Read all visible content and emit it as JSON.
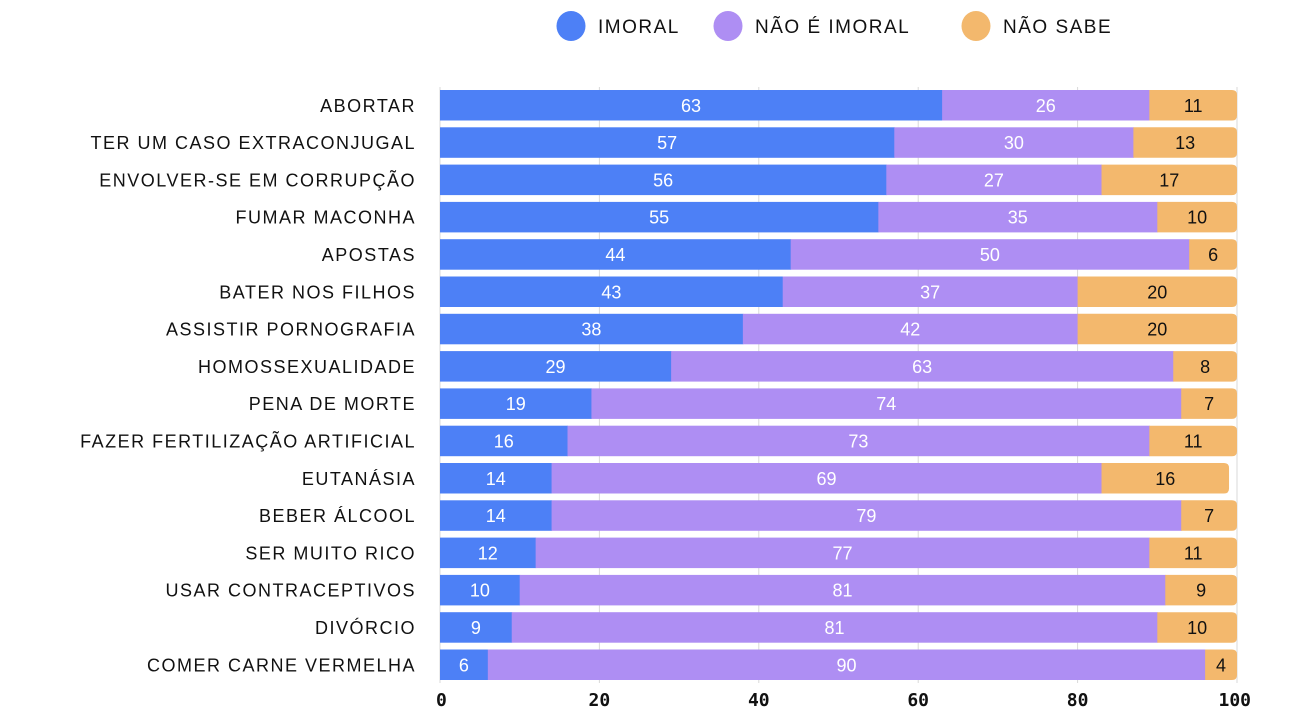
{
  "chart_data": {
    "type": "bar",
    "orientation": "horizontal",
    "stacked": true,
    "title": "",
    "xlabel": "",
    "ylabel": "",
    "xlim": [
      0,
      100
    ],
    "xticks": [
      0,
      20,
      40,
      60,
      80,
      100
    ],
    "grid": "vertical",
    "legend_position": "top",
    "categories": [
      "ABORTAR",
      "TER UM CASO EXTRACONJUGAL",
      "ENVOLVER-SE EM CORRUPÇÃO",
      "FUMAR MACONHA",
      "APOSTAS",
      "BATER NOS FILHOS",
      "ASSISTIR PORNOGRAFIA",
      "HOMOSSEXUALIDADE",
      "PENA DE MORTE",
      "FAZER FERTILIZAÇÃO ARTIFICIAL",
      "EUTANÁSIA",
      "BEBER ÁLCOOL",
      "SER MUITO RICO",
      "USAR CONTRACEPTIVOS",
      "DIVÓRCIO",
      "COMER CARNE VERMELHA"
    ],
    "series": [
      {
        "name": "IMORAL",
        "color": "#4d80f6",
        "label_color": "#ffffff",
        "values": [
          63,
          57,
          56,
          55,
          44,
          43,
          38,
          29,
          19,
          16,
          14,
          14,
          12,
          10,
          9,
          6
        ]
      },
      {
        "name": "NÃO É IMORAL",
        "color": "#ae8ef3",
        "label_color": "#ffffff",
        "values": [
          26,
          30,
          27,
          35,
          50,
          37,
          42,
          63,
          74,
          73,
          69,
          79,
          77,
          81,
          81,
          90
        ]
      },
      {
        "name": "NÃO SABE",
        "color": "#f3b86d",
        "label_color": "#111111",
        "values": [
          11,
          13,
          17,
          10,
          6,
          20,
          20,
          8,
          7,
          11,
          16,
          7,
          11,
          9,
          10,
          4
        ]
      }
    ]
  }
}
